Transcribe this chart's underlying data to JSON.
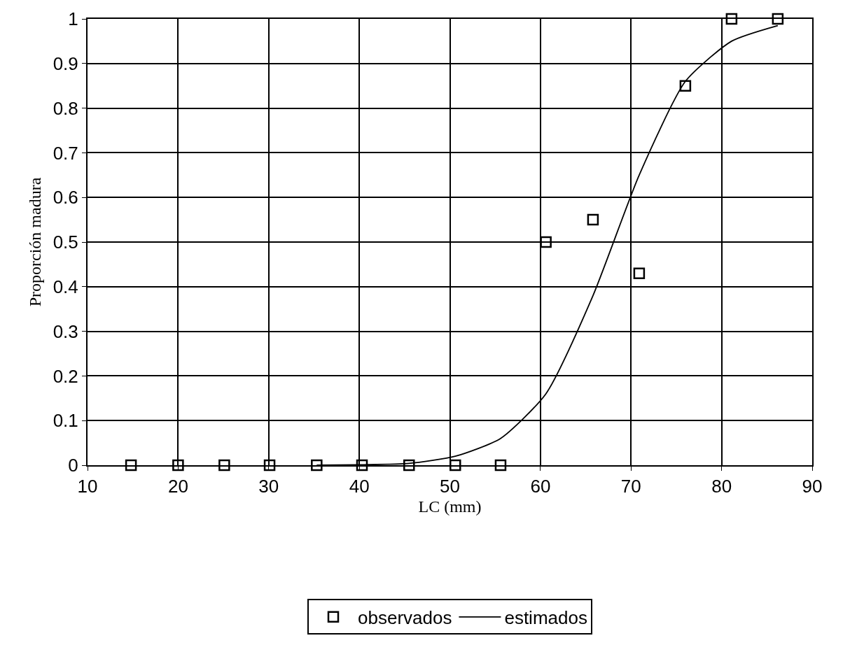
{
  "chart_data": {
    "type": "scatter",
    "xlabel": "LC (mm)",
    "ylabel": "Proporción madura",
    "xlim": [
      10,
      90
    ],
    "xticks": [
      10,
      20,
      30,
      40,
      50,
      60,
      70,
      80,
      90
    ],
    "ylim": [
      0,
      1
    ],
    "yticks": [
      0,
      0.1,
      0.2,
      0.3,
      0.4,
      0.5,
      0.6,
      0.7,
      0.8,
      0.9,
      1
    ],
    "grid": true,
    "legend": "bottom",
    "series": [
      {
        "name": "observados",
        "marker": "square",
        "color": "#000000",
        "x": [
          14.8,
          20,
          25.1,
          30.1,
          35.3,
          40.3,
          45.5,
          50.6,
          55.6,
          60.6,
          65.8,
          70.9,
          76,
          81.1,
          86.2
        ],
        "values": [
          0,
          0,
          0,
          0,
          0,
          0,
          0,
          0,
          0,
          0.5,
          0.55,
          0.43,
          0.85,
          1,
          1
        ]
      },
      {
        "name": "estimados",
        "type": "line",
        "marker": "none",
        "line_style": "solid",
        "color": "#000000",
        "x": [
          35.3,
          40.3,
          45.5,
          50.6,
          55.6,
          60.6,
          65.8,
          70.9,
          76,
          81.1,
          86.2
        ],
        "values": [
          0,
          0.001,
          0.004,
          0.02,
          0.06,
          0.16,
          0.38,
          0.65,
          0.86,
          0.95,
          0.985
        ]
      }
    ]
  }
}
